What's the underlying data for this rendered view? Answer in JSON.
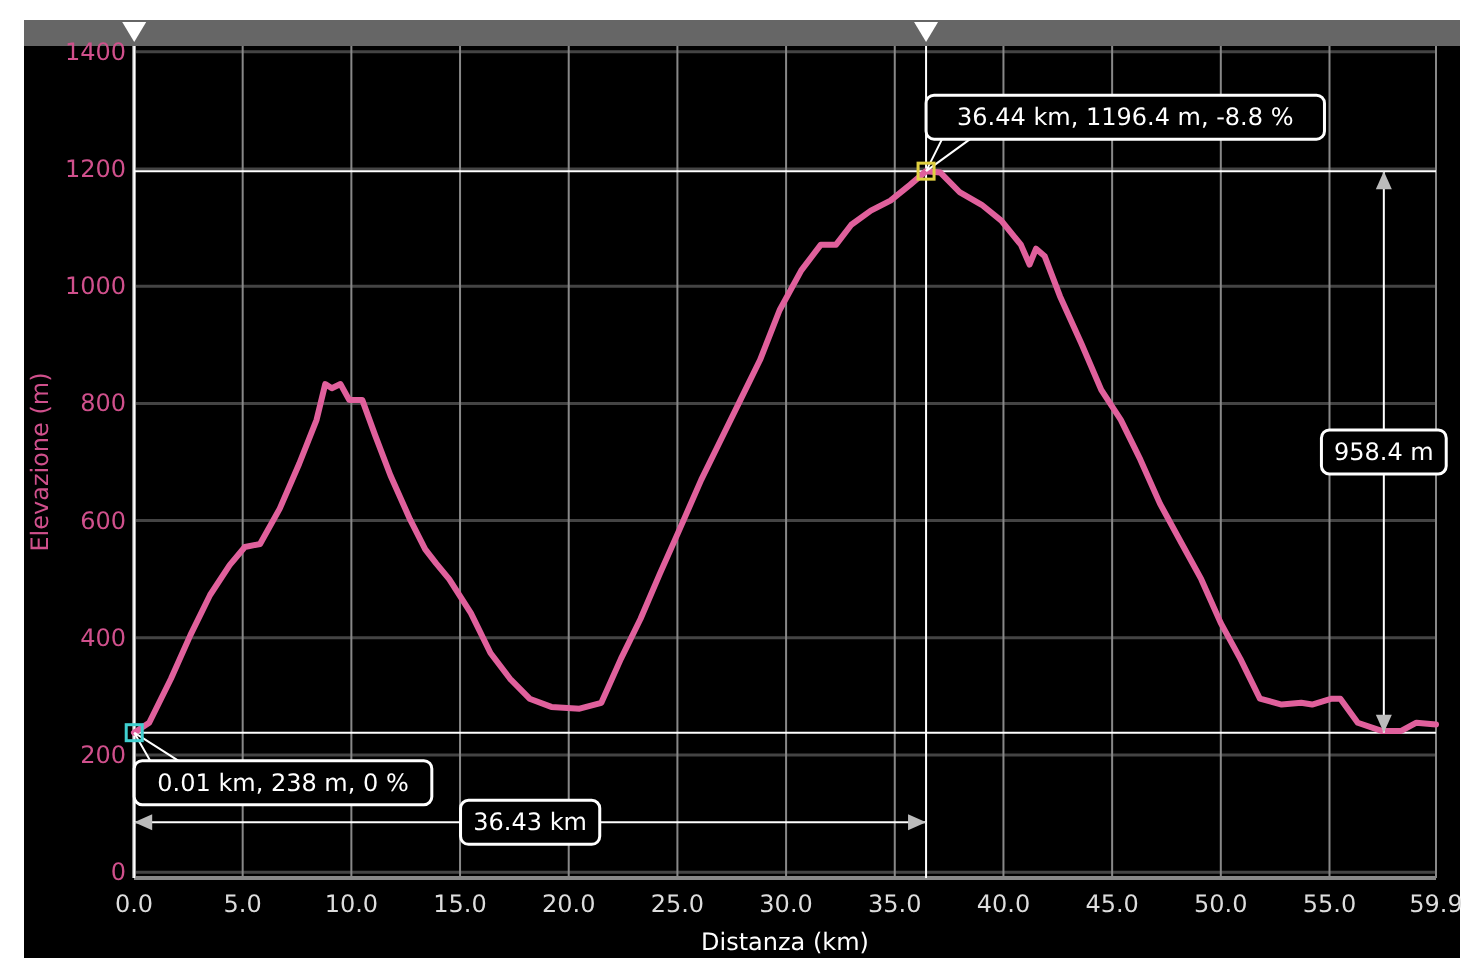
{
  "chart_data": {
    "type": "line",
    "xlabel": "Distanza (km)",
    "ylabel": "Elevazione (m)",
    "xlim": [
      0,
      59.9
    ],
    "xticks": [
      {
        "value": 0,
        "label": "0.0"
      },
      {
        "value": 5,
        "label": "5.0"
      },
      {
        "value": 10,
        "label": "10.0"
      },
      {
        "value": 15,
        "label": "15.0"
      },
      {
        "value": 20,
        "label": "20.0"
      },
      {
        "value": 25,
        "label": "25.0"
      },
      {
        "value": 30,
        "label": "30.0"
      },
      {
        "value": 35,
        "label": "35.0"
      },
      {
        "value": 40,
        "label": "40.0"
      },
      {
        "value": 45,
        "label": "45.0"
      },
      {
        "value": 50,
        "label": "50.0"
      },
      {
        "value": 55,
        "label": "55.0"
      },
      59.9
    ],
    "ylim": [
      -10,
      1410
    ],
    "yticks": [
      0,
      200,
      400,
      600,
      800,
      1000,
      1200,
      1400
    ],
    "grid": true,
    "marker": "none",
    "line_style": "solid",
    "series": [
      {
        "color": "#e0609c",
        "x": [
          0,
          0.7,
          1.7,
          2.6,
          3.5,
          4.4,
          5.1,
          5.8,
          6.7,
          7.6,
          8.4,
          8.8,
          9.1,
          9.5,
          9.9,
          10.5,
          11.1,
          11.8,
          12.7,
          13.4,
          13.9,
          14.5,
          15.5,
          16.4,
          17.3,
          18.2,
          19.2,
          20.5,
          21.5,
          22.4,
          23.3,
          24.2,
          25.1,
          26.1,
          27.0,
          27.9,
          28.8,
          29.7,
          30.7,
          31.6,
          32.3,
          33.0,
          33.9,
          34.8,
          35.7,
          36.44,
          37.1,
          38.0,
          39.0,
          39.9,
          40.8,
          41.2,
          41.5,
          41.9,
          42.6,
          43.6,
          44.5,
          45.4,
          46.3,
          47.2,
          48.2,
          49.1,
          50.0,
          50.9,
          51.8,
          52.8,
          53.7,
          54.2,
          55.1,
          55.5,
          56.3,
          57.4,
          58.3,
          59.0,
          59.9
        ],
        "values": [
          238,
          255,
          330,
          405,
          473,
          524,
          555,
          560,
          620,
          697,
          772,
          833,
          826,
          833,
          806,
          806,
          745,
          677,
          602,
          551,
          527,
          500,
          442,
          374,
          330,
          296,
          282,
          279,
          289,
          364,
          432,
          510,
          585,
          670,
          738,
          806,
          874,
          959,
          1027,
          1071,
          1071,
          1105,
          1129,
          1146,
          1173,
          1196.4,
          1194,
          1160,
          1139,
          1112,
          1071,
          1037,
          1064,
          1051,
          983,
          901,
          823,
          772,
          704,
          629,
          561,
          500,
          425,
          364,
          296,
          286,
          289,
          286,
          296,
          296,
          255,
          241,
          241,
          255,
          252
        ]
      }
    ],
    "ref_lines": [
      {
        "axis": "x",
        "value": 0.01,
        "color": "#ffffff"
      },
      {
        "axis": "x",
        "value": 36.44,
        "color": "#ffffff"
      },
      {
        "axis": "y",
        "value": 238,
        "color": "#ffffff"
      },
      {
        "axis": "y",
        "value": 1196.4,
        "color": "#ffffff"
      }
    ],
    "annotations": [
      {
        "text": "0.01 km, 238 m, 0 %",
        "x": 0.01,
        "y": 238
      },
      {
        "text": "36.44 km, 1196.4 m, -8.8 %",
        "x": 36.44,
        "y": 1196.4
      },
      "36.43 km",
      "958.4 m"
    ]
  }
}
